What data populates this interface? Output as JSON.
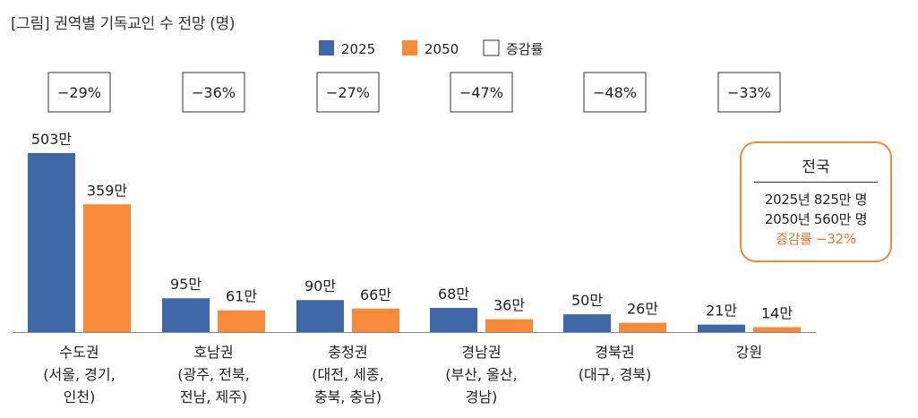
{
  "title": "[그림] 권역별 기독교인 수 전망 (명)",
  "colors": {
    "y2025": "#3f68a8",
    "y2050": "#f98a3a",
    "accent": "#ee8a3c"
  },
  "legend": [
    {
      "label": "2025",
      "swatch": "filled-blue"
    },
    {
      "label": "2050",
      "swatch": "filled-orange"
    },
    {
      "label": "증감률",
      "swatch": "empty-box"
    }
  ],
  "summary": {
    "heading": "전국",
    "line1": "2025년 825만 명",
    "line2": "2050년 560만 명",
    "line3": "증감률 −32%"
  },
  "chart_data": {
    "type": "bar",
    "title": "[그림] 권역별 기독교인 수 전망 (명)",
    "categories": [
      [
        "수도권",
        "(서울, 경기,",
        "인천)"
      ],
      [
        "호남권",
        "(광주, 전북,",
        "전남, 제주)"
      ],
      [
        "충청권",
        "(대전, 세종,",
        "충북, 충남)"
      ],
      [
        "경남권",
        "(부산, 울산,",
        "경남)"
      ],
      [
        "경북권",
        "(대구, 경북)"
      ],
      [
        "강원"
      ]
    ],
    "series": [
      {
        "name": "2025",
        "values": [
          503,
          95,
          90,
          68,
          50,
          21
        ],
        "labels": [
          "503만",
          "95만",
          "90만",
          "68만",
          "50만",
          "21만"
        ]
      },
      {
        "name": "2050",
        "values": [
          359,
          61,
          66,
          36,
          26,
          14
        ],
        "labels": [
          "359만",
          "61만",
          "66만",
          "36만",
          "26만",
          "14만"
        ]
      }
    ],
    "change_rates": [
      "−29%",
      "−36%",
      "−27%",
      "−47%",
      "−48%",
      "−33%"
    ],
    "unit": "만 명",
    "ylim": [
      0,
      503
    ],
    "grid": false,
    "legend_position": "top-center"
  }
}
